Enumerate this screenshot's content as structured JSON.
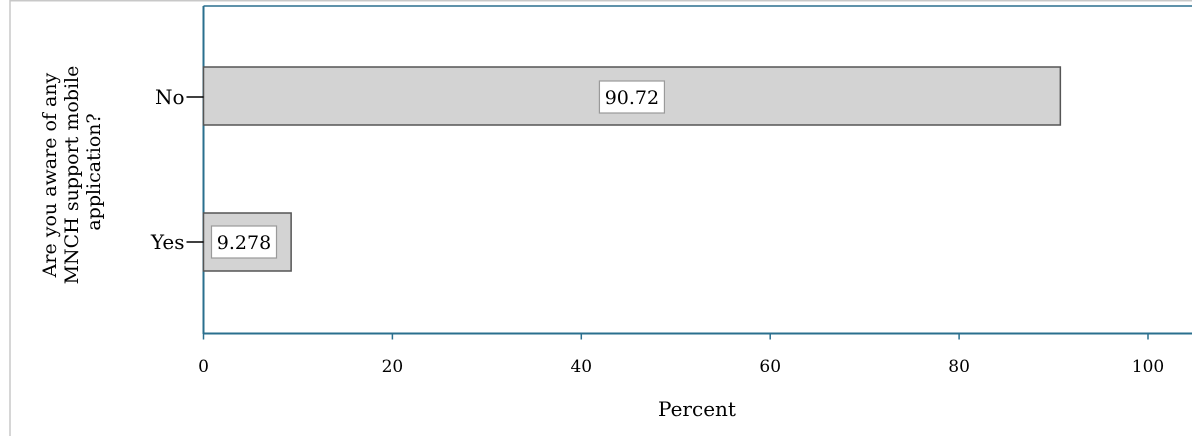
{
  "chart_data": {
    "type": "bar",
    "orientation": "horizontal",
    "categories": [
      "No",
      "Yes"
    ],
    "values": [
      90.72,
      9.278
    ],
    "value_labels": [
      "90.72",
      "9.278"
    ],
    "xlabel": "Percent",
    "ylabel": "Are you aware of any MNCH support mobile application?",
    "ylabel_lines": [
      "Are you aware of any",
      "MNCH support mobile",
      "application?"
    ],
    "xlim": [
      0,
      105
    ],
    "xticks": [
      0,
      20,
      40,
      60,
      80,
      100
    ],
    "grid": false,
    "legend": "none",
    "colors": {
      "bar_fill": "#d3d3d3",
      "bar_stroke": "#555555",
      "axis": "#2a6f8e",
      "text": "#000000"
    }
  }
}
